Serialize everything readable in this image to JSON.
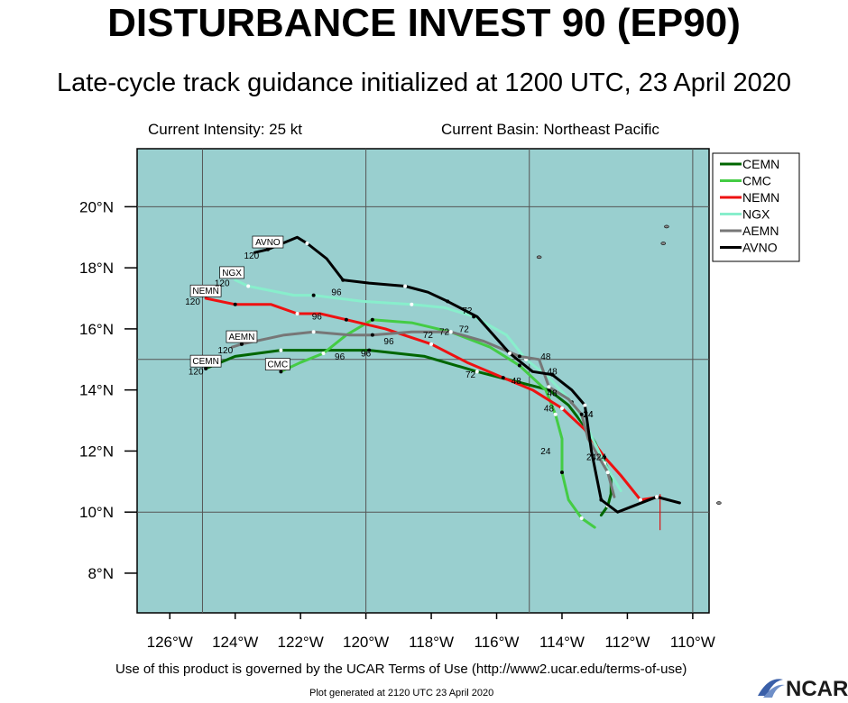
{
  "header": {
    "title": "DISTURBANCE INVEST 90 (EP90)",
    "subtitle": "Late-cycle track guidance initialized at 1200 UTC, 23 April 2020",
    "intensity": "Current Intensity: 25 kt",
    "basin": "Current Basin: Northeast Pacific"
  },
  "footer": {
    "terms": "Use of this product is governed by the UCAR Terms of Use (http://www2.ucar.edu/terms-of-use)",
    "generated": "Plot generated at 2120 UTC   23 April 2020",
    "logo": "NCAR"
  },
  "colors": {
    "ocean": "#99cfcf",
    "CEMN": "#006600",
    "CMC": "#44cc44",
    "NEMN": "#ee1111",
    "NGX": "#88eecc",
    "AEMN": "#777777",
    "AVNO": "#000000"
  },
  "chart_data": {
    "type": "line",
    "x_range_lon": [
      -127,
      -109.5
    ],
    "y_range_lat": [
      6.7,
      21.9
    ],
    "x_ticks": [
      -126,
      -124,
      -122,
      -120,
      -118,
      -116,
      -114,
      -112,
      -110
    ],
    "x_tick_labels": [
      "126°W",
      "124°W",
      "122°W",
      "120°W",
      "118°W",
      "116°W",
      "114°W",
      "112°W",
      "110°W"
    ],
    "y_ticks": [
      8,
      10,
      12,
      14,
      16,
      18,
      20
    ],
    "y_tick_labels": [
      "8°N",
      "10°N",
      "12°N",
      "14°N",
      "16°N",
      "18°N",
      "20°N"
    ],
    "grid": true,
    "legend_position": "top-right",
    "series": [
      {
        "name": "CEMN",
        "lon": [
          -112.8,
          -112.6,
          -112.5,
          -112.5,
          -113.0,
          -113.3,
          -113.8,
          -114.4,
          -115.5,
          -116.6,
          -118.2,
          -119.9,
          -121.2,
          -122.6,
          -124.0,
          -124.9
        ],
        "lat": [
          9.9,
          10.2,
          10.6,
          11.2,
          12.3,
          12.8,
          13.5,
          14.0,
          14.3,
          14.6,
          15.1,
          15.3,
          15.3,
          15.3,
          15.1,
          14.7
        ],
        "labels": [
          {
            "text": "24",
            "lon": -112.8,
            "lat": 11.7
          },
          {
            "text": "48",
            "lon": -114.3,
            "lat": 13.8
          },
          {
            "text": "72",
            "lon": -116.8,
            "lat": 14.4
          },
          {
            "text": "96",
            "lon": -120.0,
            "lat": 15.1
          },
          {
            "text": "120",
            "lon": -125.2,
            "lat": 14.5
          }
        ],
        "tag": {
          "text": "CEMN",
          "lon": -124.9,
          "lat": 14.9
        }
      },
      {
        "name": "CMC",
        "lon": [
          -113.0,
          -113.4,
          -113.8,
          -114.0,
          -114.0,
          -114.2,
          -114.5,
          -115.3,
          -116.2,
          -117.4,
          -118.6,
          -119.8,
          -120.6,
          -121.3,
          -122.0,
          -122.6
        ],
        "lat": [
          9.5,
          9.8,
          10.4,
          11.3,
          12.4,
          13.2,
          14.0,
          14.8,
          15.4,
          15.9,
          16.2,
          16.3,
          15.8,
          15.2,
          14.9,
          14.6
        ],
        "labels": [
          {
            "text": "24",
            "lon": -114.5,
            "lat": 11.9
          },
          {
            "text": "48",
            "lon": -114.4,
            "lat": 13.3
          },
          {
            "text": "72",
            "lon": -117.0,
            "lat": 15.9
          },
          {
            "text": "96",
            "lon": -120.8,
            "lat": 15.0
          }
        ],
        "tag": {
          "text": "CMC",
          "lon": -122.7,
          "lat": 14.8
        }
      },
      {
        "name": "NEMN",
        "lon": [
          -111.0,
          -111.6,
          -112.2,
          -112.7,
          -113.3,
          -114.0,
          -114.9,
          -115.8,
          -116.9,
          -118.0,
          -119.4,
          -120.6,
          -121.4,
          -122.1,
          -122.9,
          -124.0,
          -124.9
        ],
        "lat": [
          10.5,
          10.4,
          11.2,
          11.8,
          12.7,
          13.4,
          14.0,
          14.4,
          14.9,
          15.5,
          16.0,
          16.3,
          16.5,
          16.5,
          16.8,
          16.8,
          17.0
        ],
        "labels": [
          {
            "text": "24",
            "lon": -113.1,
            "lat": 11.7
          },
          {
            "text": "48",
            "lon": -115.4,
            "lat": 14.2
          },
          {
            "text": "72",
            "lon": -118.1,
            "lat": 15.7
          },
          {
            "text": "96",
            "lon": -121.5,
            "lat": 16.3
          },
          {
            "text": "120",
            "lon": -125.3,
            "lat": 16.8
          }
        ],
        "tag": {
          "text": "NEMN",
          "lon": -124.9,
          "lat": 17.2
        }
      },
      {
        "name": "NGX",
        "lon": [
          -112.2,
          -112.7,
          -113.2,
          -113.7,
          -114.4,
          -115.1,
          -115.7,
          -116.7,
          -117.6,
          -118.6,
          -120.1,
          -121.6,
          -122.2,
          -123.6,
          -124.0
        ],
        "lat": [
          10.7,
          11.6,
          12.7,
          13.6,
          14.4,
          15.0,
          15.8,
          16.4,
          16.7,
          16.8,
          16.9,
          17.1,
          17.1,
          17.4,
          17.6
        ],
        "labels": [
          {
            "text": "120",
            "lon": -124.4,
            "lat": 17.4
          }
        ],
        "tag": {
          "text": "NGX",
          "lon": -124.1,
          "lat": 17.8
        }
      },
      {
        "name": "AEMN",
        "lon": [
          -112.4,
          -112.6,
          -113.2,
          -113.4,
          -113.8,
          -114.4,
          -114.7,
          -115.3,
          -116.4,
          -117.4,
          -118.6,
          -119.8,
          -120.5,
          -121.6,
          -122.5,
          -123.8,
          -124.1
        ],
        "lat": [
          10.5,
          11.3,
          12.4,
          13.2,
          13.7,
          14.1,
          15.0,
          15.1,
          15.6,
          15.9,
          15.9,
          15.8,
          15.8,
          15.9,
          15.8,
          15.5,
          15.4
        ],
        "labels": [
          {
            "text": "24",
            "lon": -113.2,
            "lat": 13.1
          },
          {
            "text": "48",
            "lon": -114.3,
            "lat": 14.5
          },
          {
            "text": "72",
            "lon": -117.6,
            "lat": 15.8
          },
          {
            "text": "96",
            "lon": -119.3,
            "lat": 15.5
          },
          {
            "text": "120",
            "lon": -124.3,
            "lat": 15.2
          }
        ],
        "tag": {
          "text": "AEMN",
          "lon": -123.8,
          "lat": 15.7
        }
      },
      {
        "name": "AVNO",
        "lon": [
          -110.4,
          -111.1,
          -112.3,
          -112.8,
          -113.1,
          -113.3,
          -113.7,
          -114.3,
          -114.9,
          -115.6,
          -116.6,
          -117.5,
          -118.1,
          -118.8,
          -119.9,
          -120.7,
          -121.2,
          -121.8,
          -122.1,
          -123.0,
          -123.4
        ],
        "lat": [
          10.3,
          10.5,
          10.0,
          10.4,
          12.0,
          13.5,
          14.0,
          14.5,
          14.6,
          15.2,
          16.4,
          16.9,
          17.2,
          17.4,
          17.5,
          17.6,
          18.3,
          18.8,
          19.0,
          18.6,
          18.5
        ],
        "labels": [
          {
            "text": "24",
            "lon": -113.2,
            "lat": 13.1
          },
          {
            "text": "48",
            "lon": -114.5,
            "lat": 15.0
          },
          {
            "text": "72",
            "lon": -116.9,
            "lat": 16.5
          },
          {
            "text": "96",
            "lon": -120.9,
            "lat": 17.1
          },
          {
            "text": "120",
            "lon": -123.5,
            "lat": 18.3
          }
        ],
        "tag": {
          "text": "AVNO",
          "lon": -123.0,
          "lat": 18.8
        }
      }
    ],
    "islands": [
      {
        "lon": -114.7,
        "lat": 18.35
      },
      {
        "lon": -110.9,
        "lat": 18.8
      },
      {
        "lon": -110.8,
        "lat": 19.35
      },
      {
        "lon": -109.2,
        "lat": 10.3
      }
    ],
    "current_position": {
      "lon": -111.0,
      "lat": 10.0
    }
  }
}
